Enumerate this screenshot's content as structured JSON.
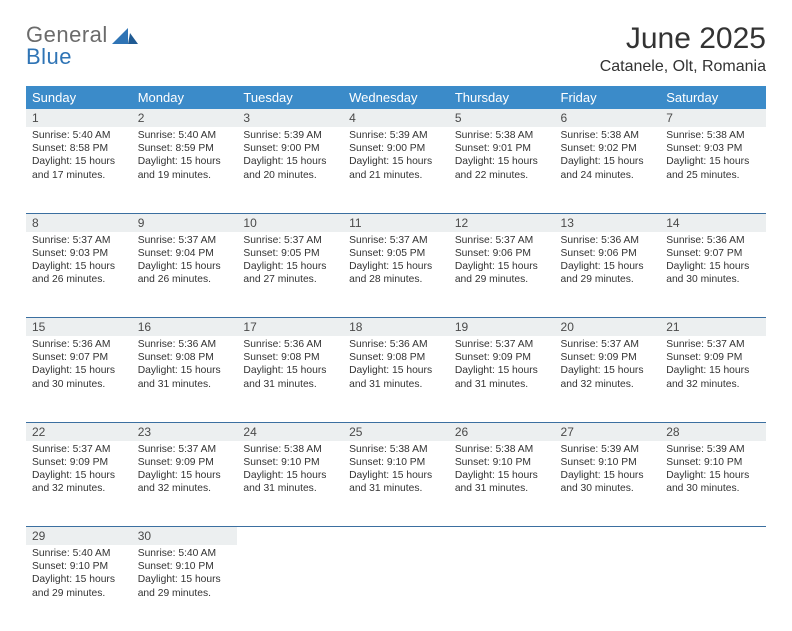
{
  "logo": {
    "general": "General",
    "blue": "Blue"
  },
  "title": "June 2025",
  "location": "Catanele, Olt, Romania",
  "colors": {
    "header_bg": "#3b8bc9",
    "header_text": "#ffffff",
    "daynum_bg": "#eceff0",
    "row_divider": "#3b6fa0",
    "logo_blue": "#2f74b5",
    "logo_gray": "#6b6b6b",
    "body_text": "#333333",
    "page_bg": "#ffffff"
  },
  "fonts": {
    "title_size": 30,
    "subtitle_size": 16,
    "header_size": 13,
    "daynum_size": 12,
    "cell_size": 10.3
  },
  "weekdays": [
    "Sunday",
    "Monday",
    "Tuesday",
    "Wednesday",
    "Thursday",
    "Friday",
    "Saturday"
  ],
  "weeks": [
    [
      {
        "n": "1",
        "sr": "5:40 AM",
        "ss": "8:58 PM",
        "dl": "15 hours and 17 minutes."
      },
      {
        "n": "2",
        "sr": "5:40 AM",
        "ss": "8:59 PM",
        "dl": "15 hours and 19 minutes."
      },
      {
        "n": "3",
        "sr": "5:39 AM",
        "ss": "9:00 PM",
        "dl": "15 hours and 20 minutes."
      },
      {
        "n": "4",
        "sr": "5:39 AM",
        "ss": "9:00 PM",
        "dl": "15 hours and 21 minutes."
      },
      {
        "n": "5",
        "sr": "5:38 AM",
        "ss": "9:01 PM",
        "dl": "15 hours and 22 minutes."
      },
      {
        "n": "6",
        "sr": "5:38 AM",
        "ss": "9:02 PM",
        "dl": "15 hours and 24 minutes."
      },
      {
        "n": "7",
        "sr": "5:38 AM",
        "ss": "9:03 PM",
        "dl": "15 hours and 25 minutes."
      }
    ],
    [
      {
        "n": "8",
        "sr": "5:37 AM",
        "ss": "9:03 PM",
        "dl": "15 hours and 26 minutes."
      },
      {
        "n": "9",
        "sr": "5:37 AM",
        "ss": "9:04 PM",
        "dl": "15 hours and 26 minutes."
      },
      {
        "n": "10",
        "sr": "5:37 AM",
        "ss": "9:05 PM",
        "dl": "15 hours and 27 minutes."
      },
      {
        "n": "11",
        "sr": "5:37 AM",
        "ss": "9:05 PM",
        "dl": "15 hours and 28 minutes."
      },
      {
        "n": "12",
        "sr": "5:37 AM",
        "ss": "9:06 PM",
        "dl": "15 hours and 29 minutes."
      },
      {
        "n": "13",
        "sr": "5:36 AM",
        "ss": "9:06 PM",
        "dl": "15 hours and 29 minutes."
      },
      {
        "n": "14",
        "sr": "5:36 AM",
        "ss": "9:07 PM",
        "dl": "15 hours and 30 minutes."
      }
    ],
    [
      {
        "n": "15",
        "sr": "5:36 AM",
        "ss": "9:07 PM",
        "dl": "15 hours and 30 minutes."
      },
      {
        "n": "16",
        "sr": "5:36 AM",
        "ss": "9:08 PM",
        "dl": "15 hours and 31 minutes."
      },
      {
        "n": "17",
        "sr": "5:36 AM",
        "ss": "9:08 PM",
        "dl": "15 hours and 31 minutes."
      },
      {
        "n": "18",
        "sr": "5:36 AM",
        "ss": "9:08 PM",
        "dl": "15 hours and 31 minutes."
      },
      {
        "n": "19",
        "sr": "5:37 AM",
        "ss": "9:09 PM",
        "dl": "15 hours and 31 minutes."
      },
      {
        "n": "20",
        "sr": "5:37 AM",
        "ss": "9:09 PM",
        "dl": "15 hours and 32 minutes."
      },
      {
        "n": "21",
        "sr": "5:37 AM",
        "ss": "9:09 PM",
        "dl": "15 hours and 32 minutes."
      }
    ],
    [
      {
        "n": "22",
        "sr": "5:37 AM",
        "ss": "9:09 PM",
        "dl": "15 hours and 32 minutes."
      },
      {
        "n": "23",
        "sr": "5:37 AM",
        "ss": "9:09 PM",
        "dl": "15 hours and 32 minutes."
      },
      {
        "n": "24",
        "sr": "5:38 AM",
        "ss": "9:10 PM",
        "dl": "15 hours and 31 minutes."
      },
      {
        "n": "25",
        "sr": "5:38 AM",
        "ss": "9:10 PM",
        "dl": "15 hours and 31 minutes."
      },
      {
        "n": "26",
        "sr": "5:38 AM",
        "ss": "9:10 PM",
        "dl": "15 hours and 31 minutes."
      },
      {
        "n": "27",
        "sr": "5:39 AM",
        "ss": "9:10 PM",
        "dl": "15 hours and 30 minutes."
      },
      {
        "n": "28",
        "sr": "5:39 AM",
        "ss": "9:10 PM",
        "dl": "15 hours and 30 minutes."
      }
    ],
    [
      {
        "n": "29",
        "sr": "5:40 AM",
        "ss": "9:10 PM",
        "dl": "15 hours and 29 minutes."
      },
      {
        "n": "30",
        "sr": "5:40 AM",
        "ss": "9:10 PM",
        "dl": "15 hours and 29 minutes."
      },
      null,
      null,
      null,
      null,
      null
    ]
  ],
  "labels": {
    "sunrise": "Sunrise:",
    "sunset": "Sunset:",
    "daylight": "Daylight:"
  }
}
